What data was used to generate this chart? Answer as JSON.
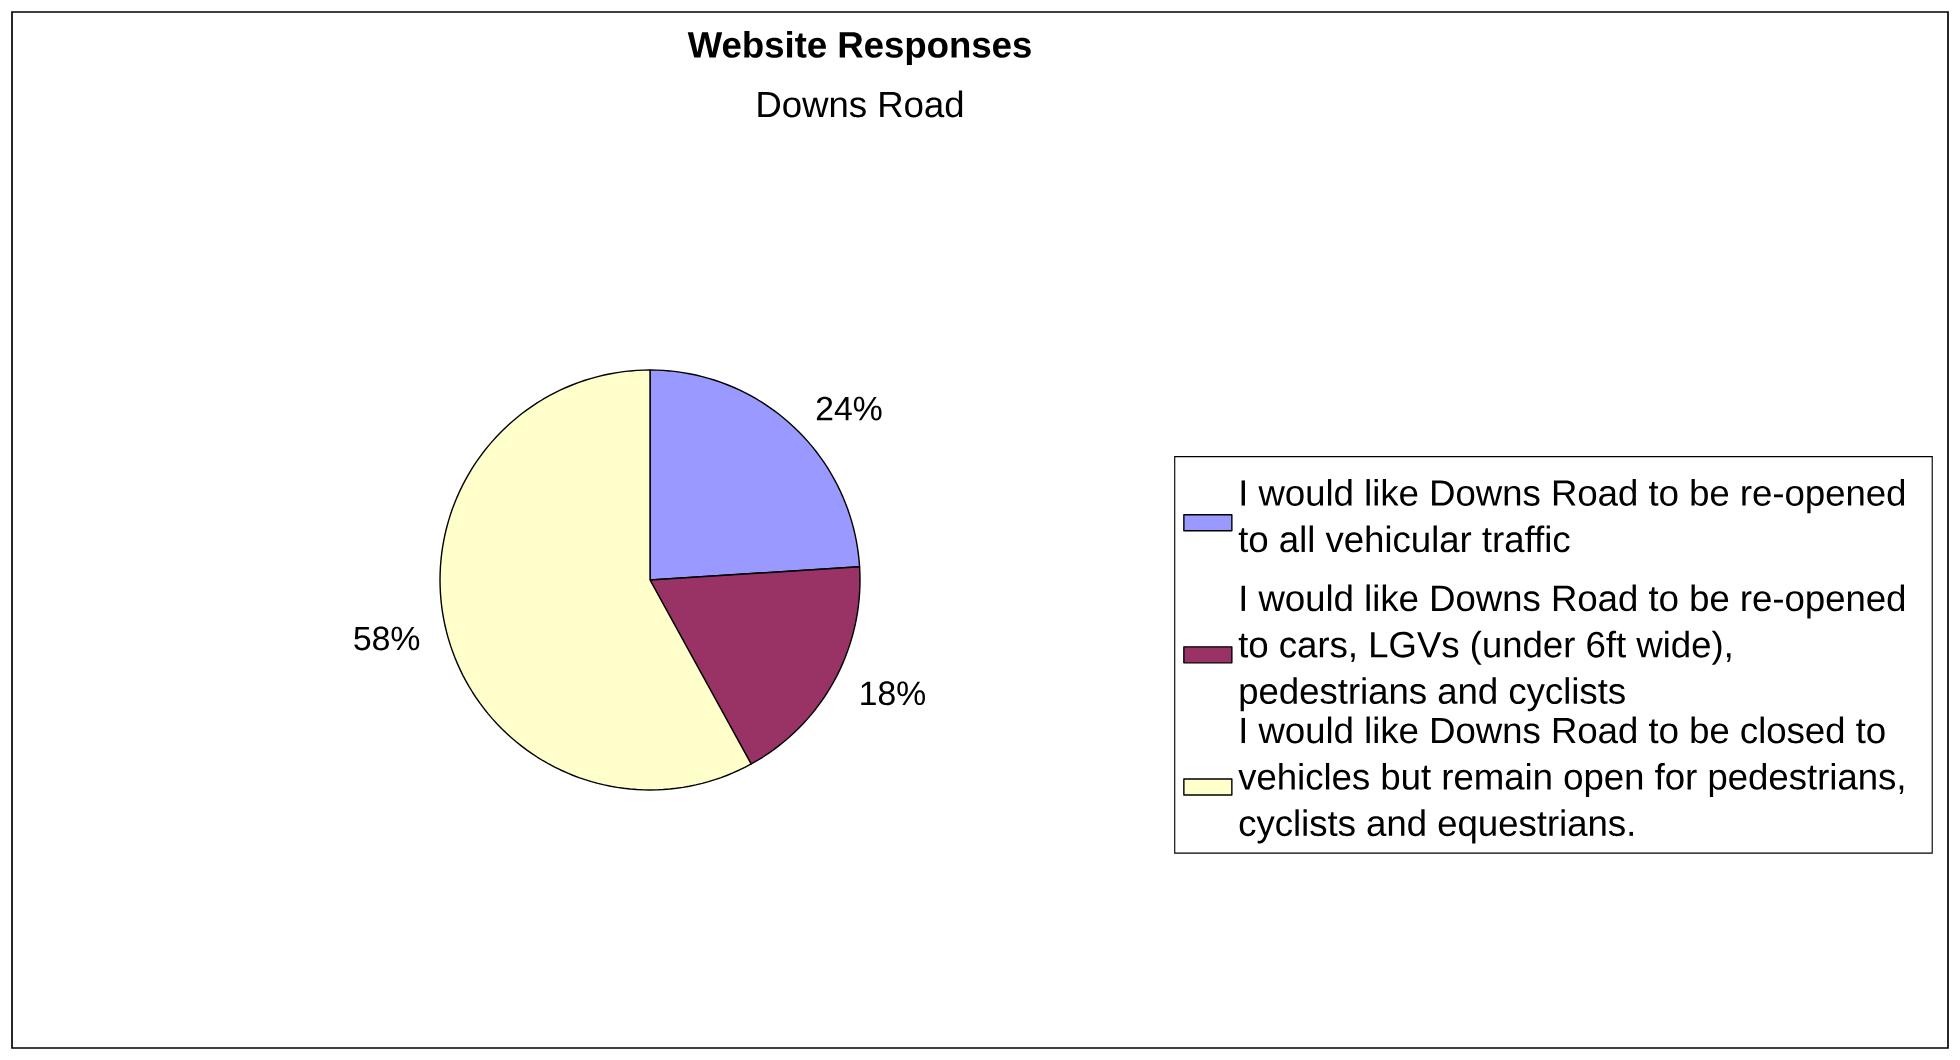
{
  "chart_data": {
    "type": "pie",
    "title": "Website Responses",
    "subtitle": "Downs Road",
    "categories": [
      "I would like Downs Road to be re-opened to all vehicular traffic",
      "I would like Downs Road to be re-opened to cars, LGVs (under 6ft wide), pedestrians and cyclists",
      "I would like Downs Road to be closed to vehicles but remain open for pedestrians, cyclists and equestrians."
    ],
    "values": [
      24,
      18,
      58
    ],
    "value_labels": [
      "24%",
      "18%",
      "58%"
    ],
    "colors": [
      "#9999ff",
      "#993366",
      "#ffffcc"
    ],
    "legend": "right"
  }
}
